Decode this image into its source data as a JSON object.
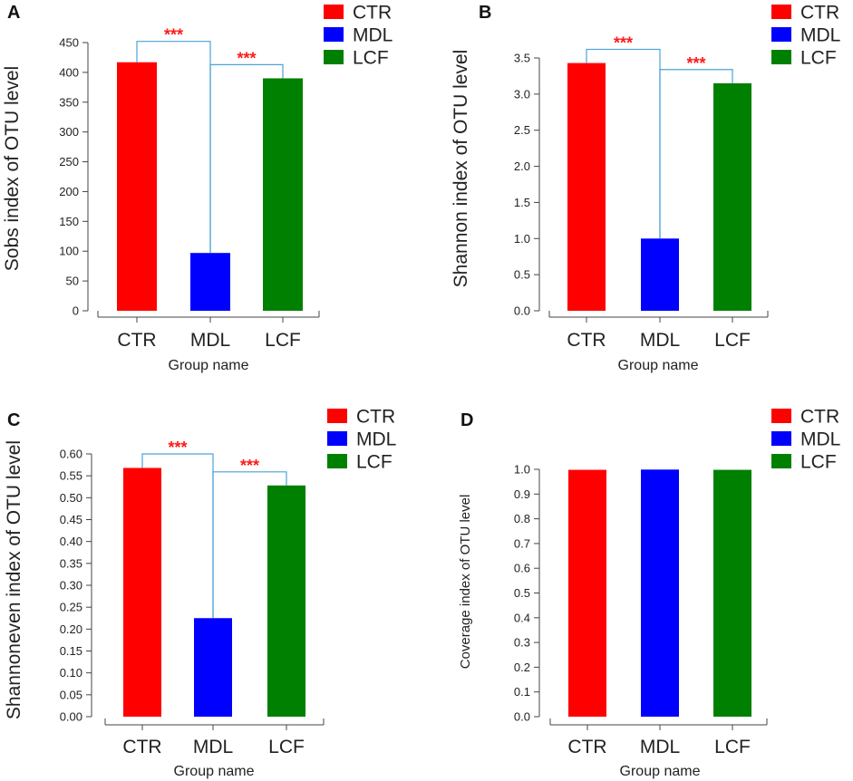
{
  "colors": {
    "CTR": "#ff0000",
    "MDL": "#0000ff",
    "LCF": "#008000",
    "bracket": "#4aa3d8",
    "sig": "#ff1a1a"
  },
  "chart_data": [
    {
      "panel": "A",
      "type": "bar",
      "categories": [
        "CTR",
        "MDL",
        "LCF"
      ],
      "values": [
        417,
        97,
        390
      ],
      "xlabel": "Group name",
      "ylabel": "Sobs index of OTU level",
      "ylim": [
        0,
        450
      ],
      "yticks": [
        "0",
        "50",
        "100",
        "150",
        "200",
        "250",
        "300",
        "350",
        "400",
        "450"
      ],
      "legend": [
        "CTR",
        "MDL",
        "LCF"
      ],
      "significance": [
        {
          "from": "CTR",
          "to": "MDL",
          "label": "***",
          "level": 452
        },
        {
          "from": "MDL",
          "to": "LCF",
          "label": "***",
          "level": 413
        }
      ]
    },
    {
      "panel": "B",
      "type": "bar",
      "categories": [
        "CTR",
        "MDL",
        "LCF"
      ],
      "values": [
        3.43,
        1.0,
        3.15
      ],
      "xlabel": "Group name",
      "ylabel": "Shannon index of OTU level",
      "ylim": [
        0,
        3.5
      ],
      "yticks": [
        "0.0",
        "0.5",
        "1.0",
        "1.5",
        "2.0",
        "2.5",
        "3.0",
        "3.5"
      ],
      "legend": [
        "CTR",
        "MDL",
        "LCF"
      ],
      "significance": [
        {
          "from": "CTR",
          "to": "MDL",
          "label": "***",
          "level": 3.62
        },
        {
          "from": "MDL",
          "to": "LCF",
          "label": "***",
          "level": 3.34
        }
      ]
    },
    {
      "panel": "C",
      "type": "bar",
      "categories": [
        "CTR",
        "MDL",
        "LCF"
      ],
      "values": [
        0.568,
        0.225,
        0.528
      ],
      "xlabel": "Group name",
      "ylabel": "Shannoneven index of OTU level",
      "ylim": [
        0,
        0.6
      ],
      "yticks": [
        "0.00",
        "0.05",
        "0.10",
        "0.15",
        "0.20",
        "0.25",
        "0.30",
        "0.35",
        "0.40",
        "0.45",
        "0.50",
        "0.55",
        "0.60"
      ],
      "legend": [
        "CTR",
        "MDL",
        "LCF"
      ],
      "significance": [
        {
          "from": "CTR",
          "to": "MDL",
          "label": "***",
          "level": 0.6
        },
        {
          "from": "MDL",
          "to": "LCF",
          "label": "***",
          "level": 0.559
        }
      ]
    },
    {
      "panel": "D",
      "type": "bar",
      "categories": [
        "CTR",
        "MDL",
        "LCF"
      ],
      "values": [
        0.998,
        0.999,
        0.998
      ],
      "xlabel": "Group name",
      "ylabel": "Coverage index of OTU level",
      "ylim": [
        0,
        1.0
      ],
      "yticks": [
        "0.0",
        "0.1",
        "0.2",
        "0.3",
        "0.4",
        "0.5",
        "0.6",
        "0.7",
        "0.8",
        "0.9",
        "1.0"
      ],
      "legend": [
        "CTR",
        "MDL",
        "LCF"
      ],
      "significance": []
    }
  ]
}
